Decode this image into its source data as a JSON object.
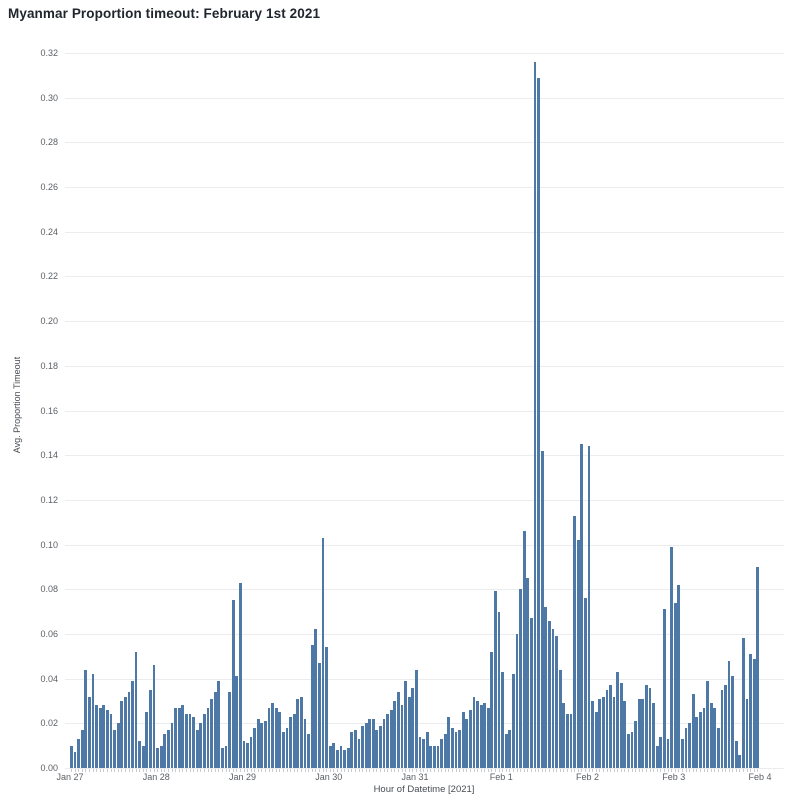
{
  "title": "Myanmar Proportion timeout: February 1st 2021",
  "colors": {
    "bar": "#4e79a7",
    "grid": "#ebecee",
    "tick_text": "#5b6066",
    "axis_title_text": "#474c52",
    "title_text": "#20262e",
    "background": "#ffffff"
  },
  "chart_data": {
    "type": "bar",
    "title": "Myanmar Proportion timeout: February 1st 2021",
    "xlabel": "Hour of Datetime [2021]",
    "ylabel": "Avg. Proportion Timeout",
    "ylim": [
      0,
      0.33
    ],
    "grid": true,
    "legend": false,
    "y_tick_labels": [
      "0.00",
      "0.02",
      "0.04",
      "0.06",
      "0.08",
      "0.10",
      "0.12",
      "0.14",
      "0.16",
      "0.18",
      "0.20",
      "0.22",
      "0.24",
      "0.26",
      "0.28",
      "0.30",
      "0.32"
    ],
    "x_tick_labels": [
      "Jan 27",
      "Jan 28",
      "Jan 29",
      "Jan 30",
      "Jan 31",
      "Feb 1",
      "Feb 2",
      "Feb 3",
      "Feb 4"
    ],
    "hours_per_day": 24,
    "days": [
      {
        "label": "Jan 27",
        "hourly": [
          0.01,
          0.007,
          0.013,
          0.017,
          0.044,
          0.032,
          0.042,
          0.028,
          0.027,
          0.028,
          0.026,
          0.024,
          0.017,
          0.02,
          0.03,
          0.032,
          0.034,
          0.039,
          0.052,
          0.012,
          0.01,
          0.025,
          0.035,
          0.046
        ]
      },
      {
        "label": "Jan 28",
        "hourly": [
          0.009,
          0.01,
          0.015,
          0.017,
          0.02,
          0.027,
          0.027,
          0.028,
          0.024,
          0.024,
          0.023,
          0.017,
          0.02,
          0.024,
          0.027,
          0.031,
          0.034,
          0.039,
          0.009,
          0.01,
          0.034,
          0.075,
          0.041,
          0.083
        ]
      },
      {
        "label": "Jan 29",
        "hourly": [
          0.012,
          0.011,
          0.014,
          0.018,
          0.022,
          0.02,
          0.021,
          0.027,
          0.029,
          0.027,
          0.025,
          0.016,
          0.018,
          0.023,
          0.024,
          0.031,
          0.032,
          0.022,
          0.015,
          0.055,
          0.062,
          0.047,
          0.103,
          0.054
        ]
      },
      {
        "label": "Jan 30",
        "hourly": [
          0.01,
          0.011,
          0.008,
          0.01,
          0.008,
          0.009,
          0.016,
          0.017,
          0.013,
          0.019,
          0.02,
          0.022,
          0.022,
          0.017,
          0.019,
          0.022,
          0.024,
          0.026,
          0.03,
          0.034,
          0.028,
          0.039,
          0.032,
          0.036
        ]
      },
      {
        "label": "Jan 31",
        "hourly": [
          0.044,
          0.014,
          0.013,
          0.016,
          0.01,
          0.01,
          0.01,
          0.013,
          0.015,
          0.023,
          0.018,
          0.016,
          0.017,
          0.025,
          0.022,
          0.026,
          0.032,
          0.03,
          0.028,
          0.029,
          0.027,
          0.052,
          0.079,
          0.07
        ]
      },
      {
        "label": "Feb 1",
        "hourly": [
          0.043,
          0.015,
          0.017,
          0.042,
          0.06,
          0.08,
          0.106,
          0.085,
          0.067,
          0.316,
          0.309,
          0.142,
          0.072,
          0.066,
          0.062,
          0.059,
          0.044,
          0.029,
          0.024,
          0.024,
          0.113,
          0.102,
          0.145,
          0.076
        ]
      },
      {
        "label": "Feb 2",
        "hourly": [
          0.144,
          0.03,
          0.025,
          0.031,
          0.032,
          0.035,
          0.037,
          0.032,
          0.043,
          0.038,
          0.03,
          0.015,
          0.016,
          0.021,
          0.031,
          0.031,
          0.037,
          0.036,
          0.029,
          0.01,
          0.014,
          0.071,
          0.013,
          0.099
        ]
      },
      {
        "label": "Feb 3",
        "hourly": [
          0.074,
          0.082,
          0.013,
          0.018,
          0.02,
          0.033,
          0.023,
          0.025,
          0.027,
          0.039,
          0.029,
          0.027,
          0.018,
          0.035,
          0.037,
          0.048,
          0.041,
          0.012,
          0.006,
          0.058,
          0.031,
          0.051,
          0.049,
          0.09
        ]
      }
    ]
  }
}
